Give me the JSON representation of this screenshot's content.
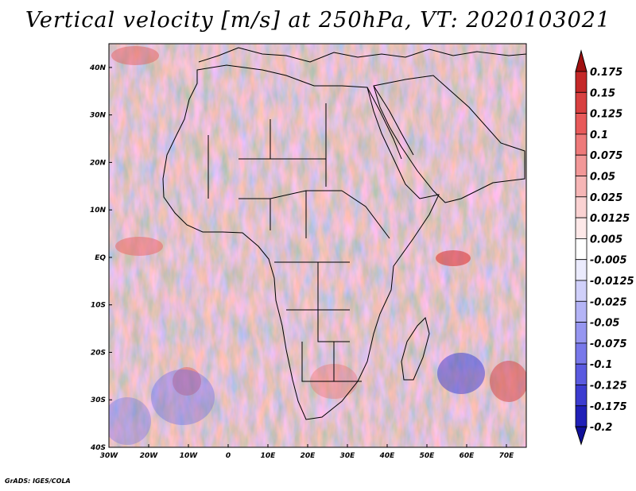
{
  "title": "Vertical velocity [m/s] at 250hPa, VT: 2020103021",
  "footer": "GrADS: IGES/COLA",
  "map": {
    "lon_range": [
      -30,
      75
    ],
    "lat_range": [
      -40,
      45
    ],
    "lon_ticks": [
      "30W",
      "20W",
      "10W",
      "0",
      "10E",
      "20E",
      "30E",
      "40E",
      "50E",
      "60E",
      "70E"
    ],
    "lat_ticks": [
      "40N",
      "30N",
      "20N",
      "10N",
      "EQ",
      "10S",
      "20S",
      "30S",
      "40S"
    ]
  },
  "colorbar": {
    "labels": [
      "0.175",
      "0.15",
      "0.125",
      "0.1",
      "0.075",
      "0.05",
      "0.025",
      "0.0125",
      "0.005",
      "-0.005",
      "-0.0125",
      "-0.025",
      "-0.05",
      "-0.075",
      "-0.1",
      "-0.125",
      "-0.175",
      "-0.2"
    ],
    "colors": [
      "#a01010",
      "#c42828",
      "#d84040",
      "#e85a5a",
      "#ee7a7a",
      "#f29898",
      "#f6b6b6",
      "#fad2d2",
      "#fde8e8",
      "#ffffff",
      "#ebebfd",
      "#d0d0fa",
      "#b4b4f6",
      "#9696f0",
      "#7878ea",
      "#5a5ae0",
      "#3c3cd0",
      "#2020b8",
      "#10109a"
    ]
  }
}
